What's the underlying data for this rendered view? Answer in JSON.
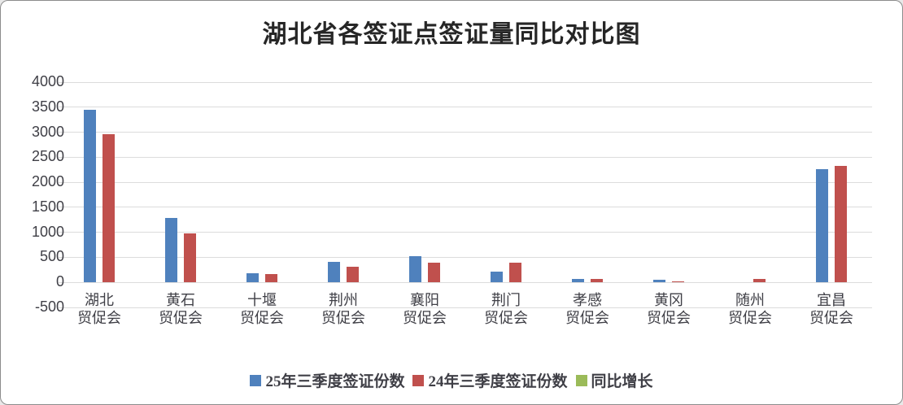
{
  "window": {
    "background": "#ffffff",
    "border_color": "#8c8c8c"
  },
  "chart_data": {
    "type": "bar",
    "title": "湖北省各签证点签证量同比对比图",
    "categories": [
      {
        "line1": "湖北",
        "line2": "贸促会"
      },
      {
        "line1": "黄石",
        "line2": "贸促会"
      },
      {
        "line1": "十堰",
        "line2": "贸促会"
      },
      {
        "line1": "荆州",
        "line2": "贸促会"
      },
      {
        "line1": "襄阳",
        "line2": "贸促会"
      },
      {
        "line1": "荆门",
        "line2": "贸促会"
      },
      {
        "line1": "孝感",
        "line2": "贸促会"
      },
      {
        "line1": "黄冈",
        "line2": "贸促会"
      },
      {
        "line1": "随州",
        "line2": "贸促会"
      },
      {
        "line1": "宜昌",
        "line2": "贸促会"
      }
    ],
    "series": [
      {
        "name": "25年三季度签证份数",
        "color": "#4F81BD",
        "values": [
          3450,
          1290,
          180,
          410,
          520,
          210,
          70,
          50,
          0,
          2260
        ]
      },
      {
        "name": "24年三季度签证份数",
        "color": "#C0504D",
        "values": [
          2960,
          980,
          160,
          310,
          400,
          400,
          65,
          25,
          65,
          2320
        ]
      },
      {
        "name": "同比增长",
        "color": "#9BBB59",
        "values": []
      }
    ],
    "ylim": [
      -500,
      4000
    ],
    "yticks": [
      4000,
      3500,
      3000,
      2500,
      2000,
      1500,
      1000,
      500,
      0,
      -500
    ],
    "grid": true,
    "legend_position": "bottom",
    "gridline_color": "#dcdcdc",
    "text_color": "#3f3f46"
  }
}
